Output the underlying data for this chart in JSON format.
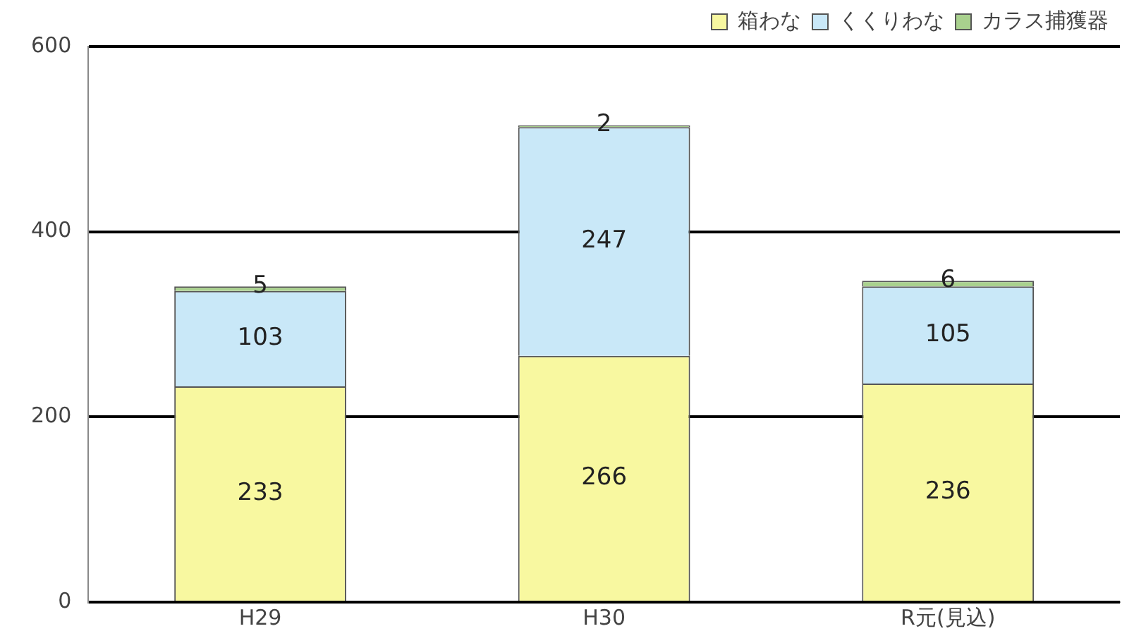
{
  "chart_data": {
    "type": "bar",
    "stacked": true,
    "categories": [
      "H29",
      "H30",
      "R元(見込)"
    ],
    "series": [
      {
        "name": "箱わな",
        "color": "#f8f8a0",
        "values": [
          233,
          266,
          236
        ]
      },
      {
        "name": "くくりわな",
        "color": "#c9e8f8",
        "values": [
          103,
          247,
          105
        ]
      },
      {
        "name": "カラス捕獲器",
        "color": "#a9d18e",
        "values": [
          5,
          2,
          6
        ]
      }
    ],
    "ylim": [
      0,
      600
    ],
    "yticks": [
      0,
      200,
      400,
      600
    ],
    "grid": "y",
    "legend": "top right",
    "data_labels": true
  }
}
